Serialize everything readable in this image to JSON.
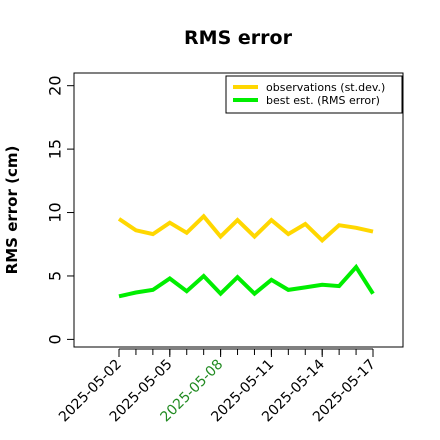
{
  "chart_data": {
    "type": "line",
    "title": "RMS error",
    "xlabel": "",
    "ylabel": "RMS error (cm)",
    "x": [
      "2025-05-02",
      "2025-05-03",
      "2025-05-04",
      "2025-05-05",
      "2025-05-06",
      "2025-05-07",
      "2025-05-08",
      "2025-05-09",
      "2025-05-10",
      "2025-05-11",
      "2025-05-12",
      "2025-05-13",
      "2025-05-14",
      "2025-05-15",
      "2025-05-16",
      "2025-05-17"
    ],
    "xticks": [
      {
        "label": "2025-05-02",
        "index": 0,
        "color": "#000000"
      },
      {
        "label": "2025-05-05",
        "index": 3,
        "color": "#000000"
      },
      {
        "label": "2025-05-08",
        "index": 6,
        "color": "#228B22"
      },
      {
        "label": "2025-05-11",
        "index": 9,
        "color": "#000000"
      },
      {
        "label": "2025-05-14",
        "index": 12,
        "color": "#000000"
      },
      {
        "label": "2025-05-17",
        "index": 15,
        "color": "#000000"
      }
    ],
    "yticks": [
      0,
      5,
      10,
      15,
      20
    ],
    "ylim": [
      -0.6,
      21
    ],
    "grid": false,
    "legend_position": "top-right",
    "series": [
      {
        "name": "observations (st.dev.)",
        "color": "#FFD700",
        "values": [
          9.5,
          8.6,
          8.3,
          9.2,
          8.4,
          9.7,
          8.1,
          9.4,
          8.1,
          9.4,
          8.3,
          9.1,
          7.8,
          9.0,
          8.8,
          8.5
        ]
      },
      {
        "name": "best est. (RMS error)",
        "color": "#00EE00",
        "values": [
          3.4,
          3.7,
          3.9,
          4.8,
          3.8,
          5.0,
          3.6,
          4.9,
          3.6,
          4.7,
          3.9,
          4.1,
          4.3,
          4.2,
          5.7,
          3.6
        ]
      }
    ]
  }
}
